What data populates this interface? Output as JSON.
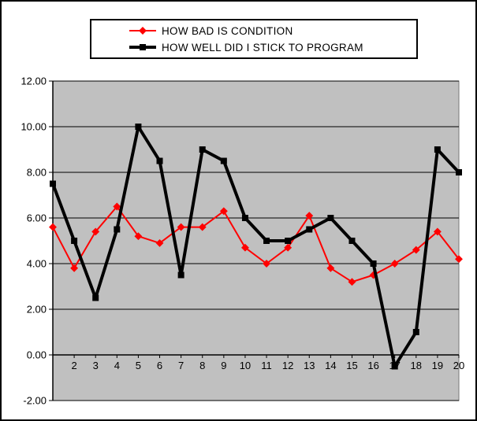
{
  "legend": {
    "entries": [
      {
        "label": "HOW BAD IS CONDITION",
        "color": "#FF0000",
        "marker": "diamond"
      },
      {
        "label": "HOW WELL DID I STICK TO PROGRAM",
        "color": "#000000",
        "marker": "square"
      }
    ]
  },
  "chart_data": {
    "type": "line",
    "title": "",
    "x": [
      1,
      2,
      3,
      4,
      5,
      6,
      7,
      8,
      9,
      10,
      11,
      12,
      13,
      14,
      15,
      16,
      17,
      18,
      19,
      20
    ],
    "x_tick_labels": [
      "2",
      "3",
      "4",
      "5",
      "6",
      "7",
      "8",
      "9",
      "10",
      "11",
      "12",
      "13",
      "14",
      "15",
      "16",
      "17",
      "18",
      "19",
      "20"
    ],
    "y_tick_labels": [
      "12.00",
      "10.00",
      "8.00",
      "6.00",
      "4.00",
      "2.00",
      "0.00",
      "-2.00"
    ],
    "ylim": [
      -2,
      12
    ],
    "ytick_step": 2,
    "plot_bg": "#C0C0C0",
    "gridline_color": "#000000",
    "axis_color": "#000000",
    "legend_position": "top",
    "grid": "horizontal",
    "series": [
      {
        "name": "HOW BAD IS CONDITION",
        "color": "#FF0000",
        "marker": "diamond",
        "values": [
          5.6,
          3.8,
          5.4,
          6.5,
          5.2,
          4.9,
          5.6,
          5.6,
          6.3,
          4.7,
          4.0,
          4.7,
          6.1,
          3.8,
          3.2,
          3.5,
          4.0,
          4.6,
          5.4,
          4.2
        ]
      },
      {
        "name": "HOW WELL DID I STICK TO PROGRAM",
        "color": "#000000",
        "marker": "square",
        "values": [
          7.5,
          5.0,
          2.5,
          5.5,
          10.0,
          8.5,
          3.5,
          9.0,
          8.5,
          6.0,
          5.0,
          5.0,
          5.5,
          6.0,
          5.0,
          4.0,
          -0.5,
          1.0,
          9.0,
          8.0
        ]
      }
    ]
  }
}
